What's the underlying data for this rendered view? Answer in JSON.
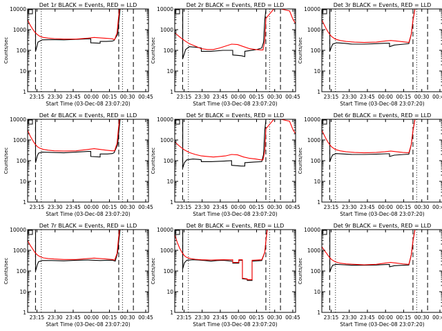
{
  "figure": {
    "x_axis_title": "Start Time (03-Dec-08 23:07:20)",
    "y_axis_title": "Counts/sec",
    "x_tick_labels": [
      "23:15",
      "23:30",
      "23:45",
      "00:00",
      "00:15",
      "00:30",
      "00:45"
    ],
    "y_tick_labels": [
      "1",
      "10",
      "100",
      "1000",
      "10000"
    ]
  },
  "colors": {
    "events": "#000000",
    "lld": "#ff0000",
    "axes": "#000000"
  },
  "chart_data": [
    {
      "type": "line",
      "title": "Det 1r BLACK = Events, RED = LLD",
      "x_units": "minutes after 23:07:20",
      "xlim": [
        0,
        100
      ],
      "ylim": [
        1,
        10000
      ],
      "y_scale": "log",
      "xticks": [
        7.7,
        22.7,
        37.7,
        52.7,
        67.7,
        82.7,
        97.7
      ],
      "grid": false,
      "markers": {
        "dashed": [
          6.5,
          75.4,
          87.5
        ],
        "dotted": [
          11.3,
          78.5
        ]
      },
      "series": [
        {
          "name": "Events",
          "x": [
            0,
            6.6,
            6.6,
            8,
            8.5,
            12,
            20,
            30,
            40,
            50,
            52.2,
            52.2,
            60,
            60,
            65,
            70,
            71.5,
            74.5,
            75.5,
            76.5
          ],
          "y": [
            10000,
            10000,
            90,
            180,
            250,
            320,
            330,
            320,
            340,
            360,
            360,
            230,
            220,
            270,
            270,
            280,
            300,
            600,
            2500,
            10000
          ]
        },
        {
          "name": "LLD",
          "x": [
            0,
            2,
            4,
            6,
            8,
            10,
            13,
            17,
            22,
            30,
            40,
            50,
            55,
            60,
            65,
            70,
            72,
            74,
            75,
            76
          ],
          "y": [
            3000,
            1700,
            1100,
            750,
            580,
            480,
            420,
            390,
            370,
            350,
            350,
            390,
            420,
            400,
            380,
            360,
            330,
            700,
            3000,
            10000
          ]
        }
      ]
    },
    {
      "type": "line",
      "title": "Det 2r BLACK = Events, RED = LLD",
      "x_units": "minutes after 23:07:20",
      "xlim": [
        0,
        100
      ],
      "ylim": [
        1,
        10000
      ],
      "y_scale": "log",
      "xticks": [
        7.7,
        22.7,
        37.7,
        52.7,
        67.7,
        82.7,
        97.7
      ],
      "grid": false,
      "markers": {
        "dashed": [
          6.5,
          75.4,
          87.5
        ],
        "dotted": [
          11.3,
          78.5
        ]
      },
      "series": [
        {
          "name": "Events",
          "x": [
            6.6,
            6.6,
            8,
            9,
            12,
            18,
            22,
            22,
            30,
            40,
            48,
            48,
            55,
            58,
            58,
            68,
            72,
            73.5,
            74.5,
            75.5
          ],
          "y": [
            10000,
            40,
            70,
            110,
            150,
            140,
            130,
            90,
            90,
            100,
            100,
            60,
            55,
            50,
            90,
            110,
            130,
            250,
            3000,
            10000
          ]
        },
        {
          "name": "LLD",
          "x": [
            0,
            4,
            8,
            12,
            17,
            22,
            27,
            32,
            37,
            42,
            47,
            52,
            57,
            62,
            67,
            71,
            73,
            74.5,
            75.5,
            82,
            88,
            95,
            98,
            100
          ],
          "y": [
            700,
            450,
            300,
            210,
            160,
            120,
            110,
            110,
            130,
            160,
            200,
            190,
            150,
            120,
            110,
            105,
            105,
            300,
            3500,
            10000,
            10000,
            8000,
            3000,
            2000
          ]
        }
      ]
    },
    {
      "type": "line",
      "title": "Det 3r BLACK = Events, RED = LLD",
      "x_units": "minutes after 23:07:20",
      "xlim": [
        0,
        100
      ],
      "ylim": [
        1,
        10000
      ],
      "y_scale": "log",
      "xticks": [
        7.7,
        22.7,
        37.7,
        52.7,
        67.7,
        82.7,
        97.7
      ],
      "grid": false,
      "markers": {
        "dashed": [
          6.5,
          75.4,
          87.5
        ],
        "dotted": [
          11.3,
          78.5
        ]
      },
      "series": [
        {
          "name": "Events",
          "x": [
            6.6,
            6.6,
            8,
            9,
            12,
            18,
            25,
            35,
            45,
            53,
            56,
            56,
            60,
            68,
            72,
            74,
            75.5,
            77
          ],
          "y": [
            10000,
            90,
            150,
            200,
            230,
            220,
            200,
            200,
            210,
            220,
            220,
            150,
            180,
            200,
            210,
            600,
            3000,
            10000
          ]
        },
        {
          "name": "LLD",
          "x": [
            0,
            2,
            4,
            6,
            8,
            11,
            15,
            20,
            27,
            35,
            45,
            52,
            57,
            62,
            67,
            72,
            74,
            75.5,
            77
          ],
          "y": [
            3000,
            1700,
            1000,
            650,
            470,
            350,
            300,
            270,
            250,
            240,
            250,
            280,
            300,
            280,
            260,
            240,
            600,
            3000,
            10000
          ]
        }
      ]
    },
    {
      "type": "line",
      "title": "Det 4r BLACK = Events, RED = LLD",
      "x_units": "minutes after 23:07:20",
      "xlim": [
        0,
        100
      ],
      "ylim": [
        1,
        10000
      ],
      "y_scale": "log",
      "xticks": [
        7.7,
        22.7,
        37.7,
        52.7,
        67.7,
        82.7,
        97.7
      ],
      "grid": false,
      "markers": {
        "dashed": [
          6.5,
          75.4,
          87.5
        ],
        "dotted": [
          11.3,
          78.5
        ]
      },
      "series": [
        {
          "name": "Events",
          "x": [
            6.6,
            6.6,
            8,
            9,
            12,
            20,
            30,
            40,
            50,
            52.2,
            52.2,
            60,
            60,
            66,
            70,
            71.5,
            74.5,
            75.5,
            76.5
          ],
          "y": [
            10000,
            80,
            170,
            230,
            260,
            250,
            240,
            260,
            280,
            280,
            160,
            150,
            210,
            210,
            220,
            240,
            600,
            2500,
            10000
          ]
        },
        {
          "name": "LLD",
          "x": [
            0,
            2,
            4,
            6,
            8,
            10,
            13,
            17,
            22,
            30,
            40,
            50,
            55,
            60,
            65,
            70,
            72,
            74,
            75,
            76
          ],
          "y": [
            3000,
            1600,
            1000,
            650,
            480,
            400,
            350,
            320,
            300,
            290,
            300,
            350,
            380,
            350,
            320,
            300,
            300,
            700,
            3000,
            10000
          ]
        }
      ]
    },
    {
      "type": "line",
      "title": "Det 5r BLACK = Events, RED = LLD",
      "x_units": "minutes after 23:07:20",
      "xlim": [
        0,
        100
      ],
      "ylim": [
        1,
        10000
      ],
      "y_scale": "log",
      "xticks": [
        7.7,
        22.7,
        37.7,
        52.7,
        67.7,
        82.7,
        97.7
      ],
      "grid": false,
      "markers": {
        "dashed": [
          6.5,
          75.4,
          87.5
        ],
        "dotted": [
          11.3,
          78.5
        ]
      },
      "series": [
        {
          "name": "Events",
          "x": [
            6.6,
            6.6,
            8,
            10,
            15,
            20,
            22,
            22,
            30,
            40,
            47,
            47,
            55,
            58,
            58,
            65,
            72,
            73.5,
            74.5,
            75.5
          ],
          "y": [
            10000,
            45,
            80,
            110,
            120,
            115,
            110,
            90,
            90,
            95,
            100,
            60,
            55,
            55,
            80,
            85,
            90,
            200,
            3000,
            10000
          ]
        },
        {
          "name": "LLD",
          "x": [
            0,
            4,
            8,
            12,
            17,
            22,
            27,
            32,
            37,
            42,
            47,
            52,
            57,
            62,
            67,
            71,
            73,
            74.5,
            75.5,
            82,
            88,
            95,
            98,
            100
          ],
          "y": [
            800,
            500,
            330,
            250,
            200,
            170,
            160,
            150,
            160,
            170,
            200,
            190,
            150,
            130,
            120,
            110,
            110,
            300,
            3500,
            10000,
            10000,
            8000,
            3000,
            2000
          ]
        }
      ]
    },
    {
      "type": "line",
      "title": "Det 6r BLACK = Events, RED = LLD",
      "x_units": "minutes after 23:07:20",
      "xlim": [
        0,
        100
      ],
      "ylim": [
        1,
        10000
      ],
      "y_scale": "log",
      "xticks": [
        7.7,
        22.7,
        37.7,
        52.7,
        67.7,
        82.7,
        97.7
      ],
      "grid": false,
      "markers": {
        "dashed": [
          6.5,
          75.4,
          87.5
        ],
        "dotted": [
          11.3,
          78.5
        ]
      },
      "series": [
        {
          "name": "Events",
          "x": [
            6.6,
            6.6,
            8,
            9,
            12,
            18,
            25,
            35,
            45,
            53,
            56,
            56,
            60,
            68,
            72,
            74,
            75.5,
            77
          ],
          "y": [
            10000,
            90,
            150,
            190,
            220,
            210,
            200,
            200,
            205,
            215,
            215,
            160,
            185,
            200,
            205,
            600,
            3000,
            10000
          ]
        },
        {
          "name": "LLD",
          "x": [
            0,
            2,
            4,
            6,
            8,
            11,
            15,
            20,
            27,
            35,
            45,
            52,
            57,
            62,
            67,
            72,
            74,
            75.5,
            77
          ],
          "y": [
            3000,
            1700,
            1000,
            650,
            470,
            350,
            300,
            270,
            250,
            240,
            250,
            270,
            290,
            270,
            250,
            240,
            600,
            3000,
            10000
          ]
        }
      ]
    },
    {
      "type": "line",
      "title": "Det 7r BLACK = Events, RED = LLD",
      "x_units": "minutes after 23:07:20",
      "xlim": [
        0,
        100
      ],
      "ylim": [
        1,
        10000
      ],
      "y_scale": "log",
      "xticks": [
        7.7,
        22.7,
        37.7,
        52.7,
        67.7,
        82.7,
        97.7
      ],
      "grid": false,
      "markers": {
        "dashed": [
          6.5,
          75.4,
          87.5
        ],
        "dotted": [
          11.3,
          78.5
        ]
      },
      "series": [
        {
          "name": "Events",
          "x": [
            6.6,
            6.6,
            8,
            9,
            12,
            20,
            30,
            40,
            50,
            55,
            60,
            66,
            70,
            72.5,
            74.5,
            75.5,
            76.5
          ],
          "y": [
            10000,
            100,
            200,
            280,
            320,
            320,
            310,
            330,
            340,
            330,
            320,
            330,
            330,
            300,
            800,
            3000,
            10000
          ]
        },
        {
          "name": "LLD",
          "x": [
            0,
            2,
            4,
            6,
            8,
            10,
            13,
            17,
            22,
            30,
            40,
            50,
            55,
            60,
            65,
            70,
            72,
            74,
            75,
            76
          ],
          "y": [
            3000,
            1800,
            1200,
            800,
            600,
            500,
            430,
            400,
            380,
            360,
            360,
            400,
            420,
            400,
            380,
            360,
            340,
            700,
            3000,
            10000
          ]
        }
      ]
    },
    {
      "type": "line",
      "title": "Det 8r BLACK = Events, RED = LLD",
      "x_units": "minutes after 23:07:20",
      "xlim": [
        0,
        100
      ],
      "ylim": [
        1,
        10000
      ],
      "y_scale": "log",
      "xticks": [
        7.7,
        22.7,
        37.7,
        52.7,
        67.7,
        82.7,
        97.7
      ],
      "grid": false,
      "markers": {
        "dashed": [
          6.5,
          75.4,
          87.5
        ],
        "dotted": [
          11.3,
          78.5
        ]
      },
      "series": [
        {
          "name": "Events",
          "x": [
            6.6,
            6.6,
            8,
            10,
            15,
            20,
            25,
            30,
            35,
            40,
            45,
            48,
            48,
            53,
            53,
            56,
            56,
            60,
            60,
            64,
            64,
            72,
            74.5,
            75.5,
            76.5
          ],
          "y": [
            10000,
            130,
            250,
            330,
            350,
            340,
            320,
            300,
            320,
            330,
            310,
            300,
            240,
            240,
            330,
            330,
            42,
            40,
            35,
            35,
            300,
            320,
            800,
            3000,
            10000
          ]
        },
        {
          "name": "LLD",
          "x": [
            0,
            2,
            4,
            6,
            8,
            10,
            13,
            17,
            22,
            30,
            40,
            48,
            48,
            53,
            53,
            56,
            56,
            60,
            60,
            64,
            64,
            72,
            74.5,
            75.5,
            76.5
          ],
          "y": [
            6000,
            2500,
            1300,
            800,
            550,
            450,
            400,
            370,
            350,
            340,
            350,
            350,
            260,
            260,
            350,
            350,
            45,
            42,
            38,
            38,
            330,
            350,
            800,
            3000,
            10000
          ]
        }
      ]
    },
    {
      "type": "line",
      "title": "Det 9r BLACK = Events, RED = LLD",
      "x_units": "minutes after 23:07:20",
      "xlim": [
        0,
        100
      ],
      "ylim": [
        1,
        10000
      ],
      "y_scale": "log",
      "xticks": [
        7.7,
        22.7,
        37.7,
        52.7,
        67.7,
        82.7,
        97.7
      ],
      "grid": false,
      "markers": {
        "dashed": [
          6.5,
          75.4,
          87.5
        ],
        "dotted": [
          11.3,
          78.5
        ]
      },
      "series": [
        {
          "name": "Events",
          "x": [
            6.6,
            6.6,
            8,
            9,
            12,
            18,
            25,
            35,
            45,
            53,
            56,
            56,
            60,
            68,
            72,
            74,
            75.5,
            77
          ],
          "y": [
            10000,
            90,
            150,
            190,
            210,
            200,
            190,
            190,
            195,
            205,
            205,
            160,
            180,
            190,
            195,
            600,
            3000,
            10000
          ]
        },
        {
          "name": "LLD",
          "x": [
            0,
            2,
            4,
            6,
            8,
            11,
            15,
            20,
            27,
            35,
            45,
            52,
            57,
            62,
            67,
            72,
            74,
            75.5,
            77
          ],
          "y": [
            1500,
            1000,
            700,
            480,
            360,
            280,
            240,
            220,
            210,
            200,
            210,
            240,
            260,
            240,
            220,
            210,
            600,
            3000,
            10000
          ]
        }
      ]
    }
  ]
}
